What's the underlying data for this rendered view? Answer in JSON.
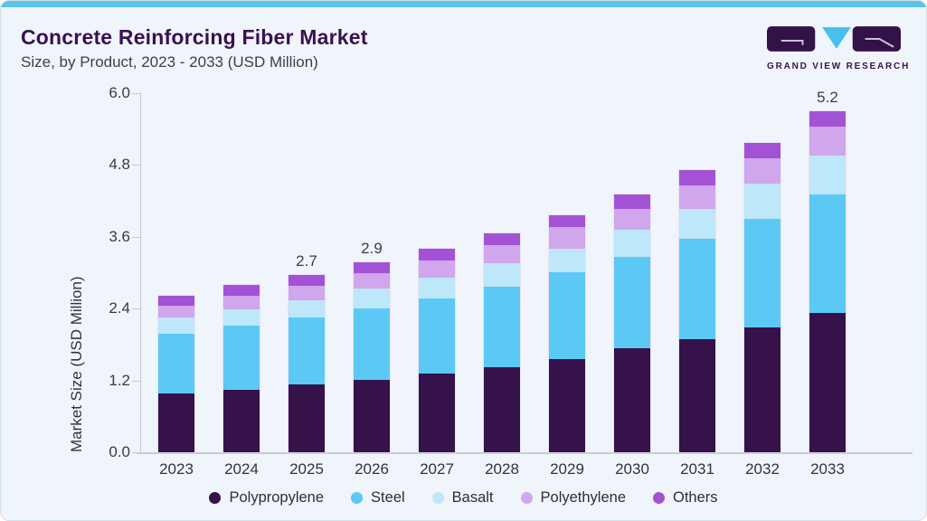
{
  "page": {
    "title": "Concrete Reinforcing Fiber Market",
    "subtitle": "Size, by Product, 2023 - 2033 (USD Million)"
  },
  "logo": {
    "caption": "GRAND VIEW RESEARCH"
  },
  "colors": {
    "accent_bar": "#5BC3EA",
    "card_background": "#EFF5FA",
    "title_text": "#3A1150",
    "axis_text": "#33333D",
    "logo_block": "#321247",
    "logo_triangle": "#49C0EB"
  },
  "chart_data": {
    "type": "bar",
    "stacked": true,
    "ylabel": "Market Size (USD Million)",
    "ylim": [
      0,
      6.0
    ],
    "yticks": [
      "0.0",
      "1.2",
      "2.4",
      "3.6",
      "4.8",
      "6.0"
    ],
    "grid": false,
    "legend_position": "bottom",
    "categories": [
      "2023",
      "2024",
      "2025",
      "2026",
      "2027",
      "2028",
      "2029",
      "2030",
      "2031",
      "2032",
      "2033"
    ],
    "series": [
      {
        "name": "Polypropylene",
        "color": "#35124A",
        "values": [
          0.89,
          0.95,
          1.03,
          1.1,
          1.2,
          1.3,
          1.42,
          1.58,
          1.72,
          1.9,
          2.13
        ]
      },
      {
        "name": "Steel",
        "color": "#5BC9F4",
        "values": [
          0.92,
          0.98,
          1.03,
          1.09,
          1.15,
          1.23,
          1.32,
          1.4,
          1.53,
          1.66,
          1.8
        ]
      },
      {
        "name": "Basalt",
        "color": "#BEE7FA",
        "values": [
          0.24,
          0.25,
          0.26,
          0.31,
          0.31,
          0.35,
          0.37,
          0.42,
          0.46,
          0.54,
          0.6
        ]
      },
      {
        "name": "Polyethylene",
        "color": "#D0A6EC",
        "values": [
          0.19,
          0.21,
          0.22,
          0.23,
          0.27,
          0.28,
          0.32,
          0.31,
          0.36,
          0.39,
          0.43
        ]
      },
      {
        "name": "Others",
        "color": "#A452D5",
        "values": [
          0.15,
          0.16,
          0.16,
          0.17,
          0.17,
          0.18,
          0.19,
          0.22,
          0.23,
          0.23,
          0.24
        ]
      }
    ],
    "totals": [
      2.39,
      2.55,
      2.7,
      2.9,
      3.1,
      3.34,
      3.62,
      3.93,
      4.3,
      4.72,
      5.2
    ],
    "bar_value_labels": {
      "2025": "2.7",
      "2026": "2.9",
      "2033": "5.2"
    }
  }
}
